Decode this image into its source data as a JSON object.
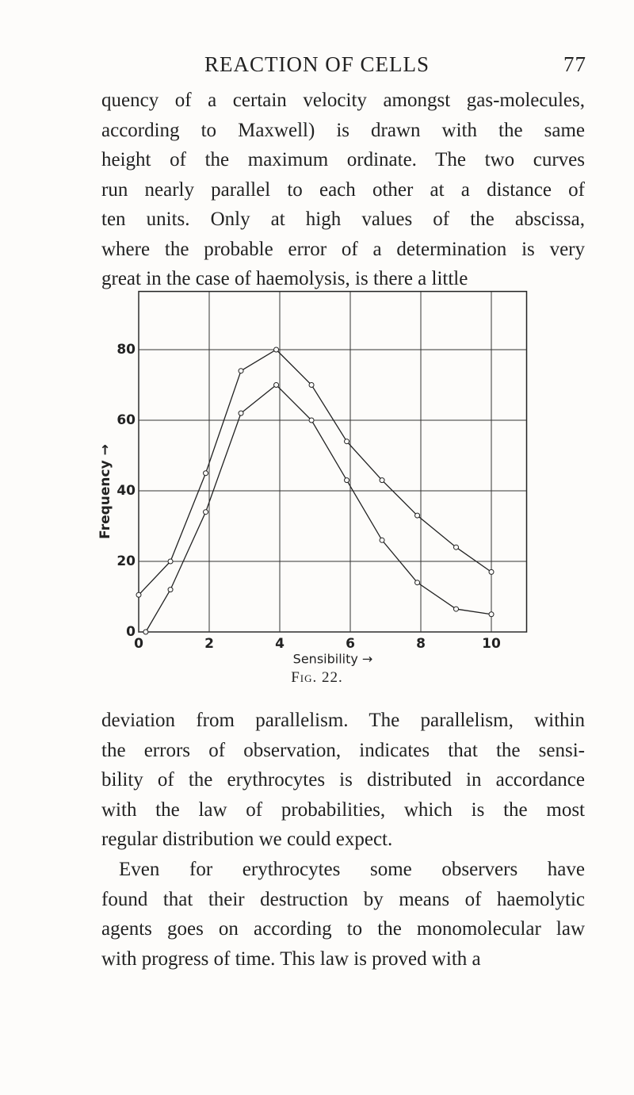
{
  "header": {
    "title": "REACTION OF CELLS",
    "page_number": "77"
  },
  "text_before": [
    [
      "quency of a certain velocity amongst gas-molecules,",
      "according to Maxwell) is drawn with the same",
      "height of the maximum ordinate. The two curves",
      "run nearly parallel to each other at a distance of",
      "ten units. Only at high values of the abscissa,",
      "where the probable error of a determination is very",
      "great in the case of haemolysis, is there a little"
    ]
  ],
  "chart_data": {
    "type": "line",
    "x_label": "Sensibility →",
    "y_label": "Frequency →",
    "xlim": [
      0,
      11
    ],
    "ylim": [
      0,
      96.5
    ],
    "xticks": [
      0,
      2,
      4,
      6,
      8,
      10
    ],
    "yticks": [
      0,
      20,
      40,
      60,
      80
    ],
    "grid": true,
    "series": [
      {
        "name": null,
        "color": "#222222",
        "x": [
          0,
          0.9,
          1.9,
          2.9,
          3.9,
          4.9,
          5.9,
          6.9,
          7.9,
          9,
          10
        ],
        "values": [
          10.5,
          20,
          45,
          74,
          80,
          70,
          54,
          43,
          33,
          24,
          17
        ]
      },
      {
        "name": null,
        "color": "#222222",
        "x": [
          0.2,
          0.9,
          1.9,
          2.9,
          3.9,
          4.9,
          5.9,
          6.9,
          7.9,
          9,
          10
        ],
        "values": [
          0,
          12,
          34,
          62,
          70,
          60,
          43,
          26,
          14,
          6.5,
          5
        ]
      }
    ]
  },
  "caption": "Fig. 22.",
  "text_after": [
    [
      "deviation from parallelism. The parallelism, within",
      "the errors of observation, indicates that the sensi-",
      "bility of the erythrocytes is distributed in accordance",
      "with the law of probabilities, which is the most",
      "regular distribution we could expect."
    ],
    [
      "Even for erythrocytes some observers have",
      "found that their destruction by means of haemolytic",
      "agents goes on according to the monomolecular law",
      "with progress of time. This law is proved with a"
    ]
  ]
}
